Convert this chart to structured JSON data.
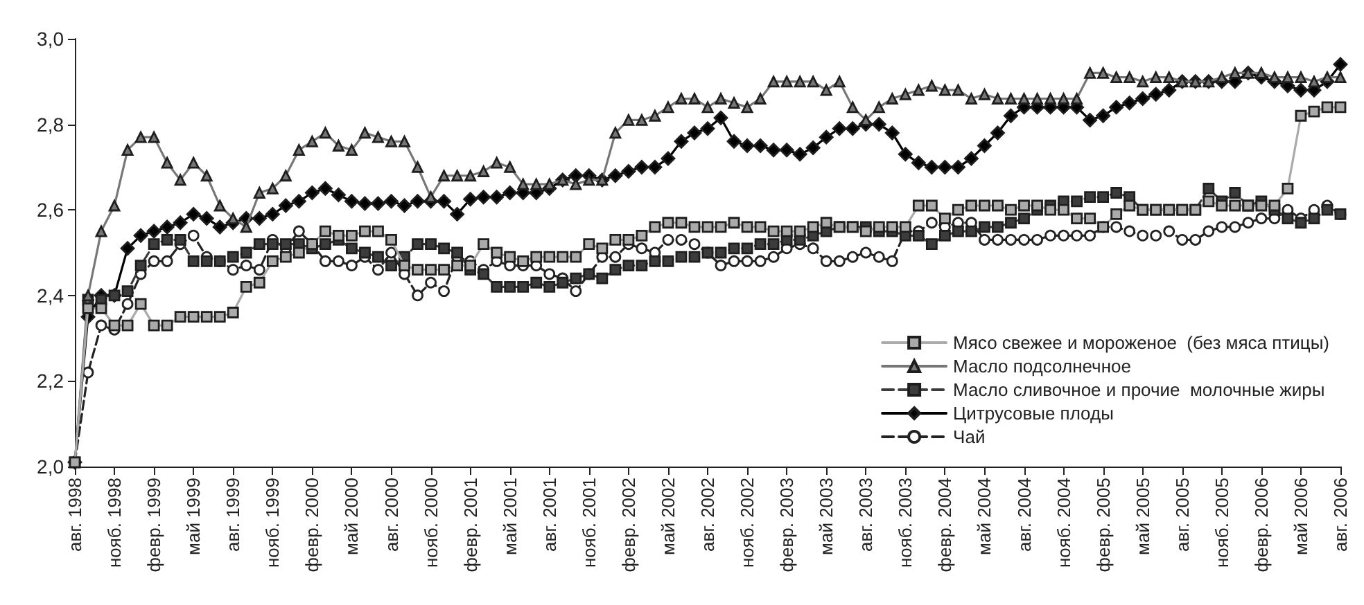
{
  "chart_data": {
    "type": "line",
    "categories": [
      "авг. 1998",
      null,
      null,
      "нояб. 1998",
      null,
      null,
      "февр. 1999",
      null,
      null,
      "май 1999",
      null,
      null,
      "авг. 1999",
      null,
      null,
      "нояб. 1999",
      null,
      null,
      "февр. 2000",
      null,
      null,
      "май 2000",
      null,
      null,
      "авг. 2000",
      null,
      null,
      "нояб. 2000",
      null,
      null,
      "февр. 2001",
      null,
      null,
      "май 2001",
      null,
      null,
      "авг. 2001",
      null,
      null,
      "нояб. 2001",
      null,
      null,
      "февр. 2002",
      null,
      null,
      "май 2002",
      null,
      null,
      "авг. 2002",
      null,
      null,
      "нояб. 2002",
      null,
      null,
      "февр. 2003",
      null,
      null,
      "май 2003",
      null,
      null,
      "авг. 2003",
      null,
      null,
      "нояб. 2003",
      null,
      null,
      "февр. 2004",
      null,
      null,
      "май 2004",
      null,
      null,
      "авг. 2004",
      null,
      null,
      "нояб. 2004",
      null,
      null,
      "февр. 2005",
      null,
      null,
      "май 2005",
      null,
      null,
      "авг. 2005",
      null,
      null,
      "нояб. 2005",
      null,
      null,
      "февр. 2006",
      null,
      null,
      "май 2006",
      null,
      null,
      "авг. 2006"
    ],
    "ylim": [
      2.0,
      3.0
    ],
    "yticks": [
      {
        "value": 2.0,
        "label": "2,0"
      },
      {
        "value": 2.2,
        "label": "2,2"
      },
      {
        "value": 2.4,
        "label": "2,4"
      },
      {
        "value": 2.6,
        "label": "2,6"
      },
      {
        "value": 2.8,
        "label": "2,8"
      },
      {
        "value": 3.0,
        "label": "3,0"
      }
    ],
    "grid": false,
    "legend": "bottom right",
    "series": [
      {
        "name": "Мясо свежее и мороженое  (без мяса птицы)",
        "color": "#aaaaaa",
        "marker": "square",
        "line_style": "solid",
        "values": [
          2.01,
          2.37,
          2.37,
          2.33,
          2.33,
          2.38,
          2.33,
          2.33,
          2.35,
          2.35,
          2.35,
          2.35,
          2.36,
          2.42,
          2.43,
          2.48,
          2.49,
          2.5,
          2.52,
          2.55,
          2.54,
          2.54,
          2.55,
          2.55,
          2.53,
          2.47,
          2.46,
          2.46,
          2.46,
          2.47,
          2.47,
          2.52,
          2.5,
          2.49,
          2.48,
          2.49,
          2.49,
          2.49,
          2.49,
          2.52,
          2.51,
          2.53,
          2.53,
          2.54,
          2.56,
          2.57,
          2.57,
          2.56,
          2.56,
          2.56,
          2.57,
          2.56,
          2.56,
          2.55,
          2.55,
          2.55,
          2.56,
          2.57,
          2.56,
          2.56,
          2.55,
          2.56,
          2.56,
          2.56,
          2.61,
          2.61,
          2.58,
          2.6,
          2.61,
          2.61,
          2.61,
          2.6,
          2.61,
          2.61,
          2.6,
          2.6,
          2.58,
          2.58,
          2.56,
          2.59,
          2.61,
          2.6,
          2.6,
          2.6,
          2.6,
          2.6,
          2.62,
          2.61,
          2.61,
          2.61,
          2.61,
          2.61,
          2.65,
          2.82,
          2.83,
          2.84,
          2.84
        ]
      },
      {
        "name": "Масло подсолнечное",
        "color": "#777777",
        "marker": "triangle",
        "line_style": "solid",
        "values": [
          2.01,
          2.4,
          2.55,
          2.61,
          2.74,
          2.77,
          2.77,
          2.71,
          2.67,
          2.71,
          2.68,
          2.61,
          2.58,
          2.56,
          2.64,
          2.65,
          2.68,
          2.74,
          2.76,
          2.78,
          2.75,
          2.74,
          2.78,
          2.77,
          2.76,
          2.76,
          2.7,
          2.63,
          2.68,
          2.68,
          2.68,
          2.69,
          2.71,
          2.7,
          2.66,
          2.66,
          2.66,
          2.67,
          2.66,
          2.67,
          2.67,
          2.78,
          2.81,
          2.81,
          2.82,
          2.84,
          2.86,
          2.86,
          2.84,
          2.86,
          2.85,
          2.84,
          2.86,
          2.9,
          2.9,
          2.9,
          2.9,
          2.88,
          2.9,
          2.84,
          2.81,
          2.84,
          2.86,
          2.87,
          2.88,
          2.89,
          2.88,
          2.88,
          2.86,
          2.87,
          2.86,
          2.86,
          2.86,
          2.86,
          2.86,
          2.86,
          2.86,
          2.92,
          2.92,
          2.91,
          2.91,
          2.9,
          2.91,
          2.91,
          2.9,
          2.9,
          2.9,
          2.91,
          2.92,
          2.92,
          2.92,
          2.91,
          2.91,
          2.91,
          2.9,
          2.91,
          2.91
        ]
      },
      {
        "name": "Масло сливочное и прочие  молочные жиры",
        "color": "#3c3c3c",
        "marker": "square",
        "line_style": "dashed",
        "values": [
          2.01,
          2.39,
          2.39,
          2.4,
          2.41,
          2.47,
          2.52,
          2.53,
          2.53,
          2.48,
          2.48,
          2.48,
          2.49,
          2.5,
          2.52,
          2.52,
          2.52,
          2.52,
          2.51,
          2.52,
          2.53,
          2.51,
          2.5,
          2.49,
          2.47,
          2.49,
          2.52,
          2.52,
          2.51,
          2.5,
          2.46,
          2.45,
          2.42,
          2.42,
          2.42,
          2.43,
          2.42,
          2.43,
          2.44,
          2.45,
          2.44,
          2.46,
          2.47,
          2.47,
          2.48,
          2.48,
          2.49,
          2.49,
          2.5,
          2.5,
          2.51,
          2.51,
          2.52,
          2.52,
          2.53,
          2.53,
          2.54,
          2.55,
          2.56,
          2.56,
          2.56,
          2.55,
          2.55,
          2.54,
          2.54,
          2.52,
          2.54,
          2.55,
          2.55,
          2.56,
          2.56,
          2.57,
          2.58,
          2.6,
          2.61,
          2.62,
          2.62,
          2.63,
          2.63,
          2.64,
          2.63,
          2.6,
          2.6,
          2.6,
          2.6,
          2.6,
          2.65,
          2.62,
          2.64,
          2.61,
          2.62,
          2.6,
          2.58,
          2.57,
          2.58,
          2.6,
          2.59
        ]
      },
      {
        "name": "Цитрусовые плоды",
        "color": "#000000",
        "marker": "diamond",
        "line_style": "solid",
        "values": [
          2.01,
          2.35,
          2.4,
          2.4,
          2.51,
          2.54,
          2.55,
          2.56,
          2.57,
          2.59,
          2.58,
          2.56,
          2.57,
          2.58,
          2.58,
          2.59,
          2.61,
          2.62,
          2.64,
          2.65,
          2.635,
          2.62,
          2.615,
          2.615,
          2.62,
          2.61,
          2.62,
          2.62,
          2.62,
          2.59,
          2.625,
          2.63,
          2.63,
          2.64,
          2.64,
          2.64,
          2.65,
          2.67,
          2.68,
          2.68,
          2.67,
          2.68,
          2.69,
          2.7,
          2.7,
          2.72,
          2.76,
          2.78,
          2.79,
          2.815,
          2.76,
          2.75,
          2.75,
          2.74,
          2.74,
          2.73,
          2.745,
          2.77,
          2.79,
          2.79,
          2.8,
          2.8,
          2.78,
          2.73,
          2.71,
          2.7,
          2.7,
          2.7,
          2.72,
          2.75,
          2.78,
          2.82,
          2.84,
          2.84,
          2.84,
          2.84,
          2.84,
          2.81,
          2.82,
          2.84,
          2.85,
          2.86,
          2.87,
          2.88,
          2.9,
          2.9,
          2.9,
          2.9,
          2.9,
          2.92,
          2.91,
          2.9,
          2.89,
          2.88,
          2.88,
          2.9,
          2.94
        ]
      },
      {
        "name": "Чай",
        "color": "#222222",
        "marker": "circle",
        "line_style": "dashed",
        "values": [
          2.01,
          2.22,
          2.33,
          2.32,
          2.38,
          2.45,
          2.48,
          2.48,
          2.52,
          2.54,
          2.49,
          2.48,
          2.46,
          2.47,
          2.46,
          2.53,
          2.51,
          2.55,
          2.52,
          2.48,
          2.48,
          2.47,
          2.49,
          2.46,
          2.5,
          2.45,
          2.4,
          2.43,
          2.41,
          2.49,
          2.48,
          2.46,
          2.48,
          2.47,
          2.47,
          2.47,
          2.45,
          2.44,
          2.41,
          2.45,
          2.49,
          2.49,
          2.52,
          2.51,
          2.5,
          2.53,
          2.53,
          2.52,
          2.5,
          2.47,
          2.48,
          2.48,
          2.48,
          2.49,
          2.51,
          2.52,
          2.51,
          2.48,
          2.48,
          2.49,
          2.5,
          2.49,
          2.48,
          2.55,
          2.55,
          2.57,
          2.56,
          2.57,
          2.57,
          2.53,
          2.53,
          2.53,
          2.53,
          2.53,
          2.54,
          2.54,
          2.54,
          2.54,
          2.56,
          2.56,
          2.55,
          2.54,
          2.54,
          2.55,
          2.53,
          2.53,
          2.55,
          2.56,
          2.56,
          2.57,
          2.58,
          2.58,
          2.6,
          2.58,
          2.6,
          2.61,
          2.59
        ]
      }
    ]
  }
}
